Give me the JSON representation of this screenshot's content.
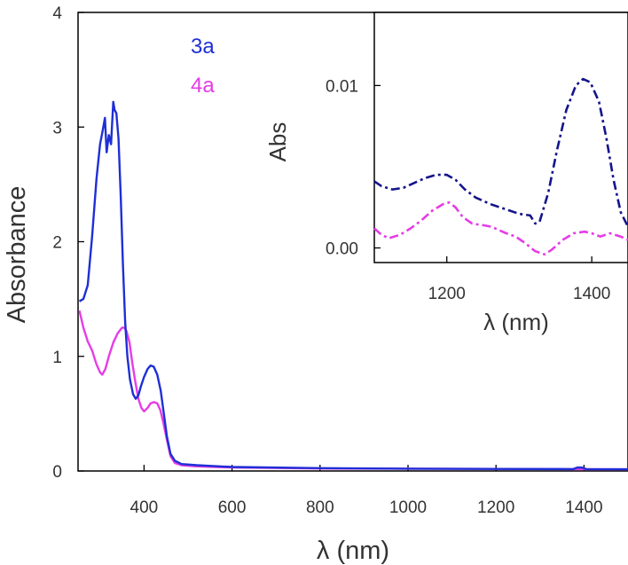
{
  "colors": {
    "series_3a": "#1f2fd6",
    "series_4a": "#e63ce6",
    "inset_3a": "#14148c",
    "inset_4a": "#e63ce6",
    "axis": "#000000",
    "text": "#333333"
  },
  "chart_data": [
    {
      "id": "main",
      "type": "line",
      "title": "",
      "xlabel": "λ (nm)",
      "ylabel": "Absorbance",
      "xlim": [
        250,
        1500
      ],
      "ylim": [
        0,
        4
      ],
      "xticks": [
        400,
        600,
        800,
        1000,
        1200,
        1400
      ],
      "yticks": [
        0,
        1,
        2,
        3,
        4
      ],
      "legend": {
        "placement": "top-center",
        "labels": [
          "3a",
          "4a"
        ]
      },
      "series": [
        {
          "name": "3a",
          "line_style": "solid",
          "points": [
            [
              253,
              1.48
            ],
            [
              262,
              1.5
            ],
            [
              272,
              1.62
            ],
            [
              282,
              2.05
            ],
            [
              292,
              2.55
            ],
            [
              300,
              2.85
            ],
            [
              305,
              2.95
            ],
            [
              311,
              3.08
            ],
            [
              315,
              2.78
            ],
            [
              320,
              2.93
            ],
            [
              325,
              2.85
            ],
            [
              330,
              3.22
            ],
            [
              333,
              3.15
            ],
            [
              337,
              3.12
            ],
            [
              342,
              2.9
            ],
            [
              347,
              2.4
            ],
            [
              352,
              1.8
            ],
            [
              357,
              1.3
            ],
            [
              362,
              1.0
            ],
            [
              368,
              0.8
            ],
            [
              375,
              0.67
            ],
            [
              381,
              0.63
            ],
            [
              387,
              0.66
            ],
            [
              393,
              0.74
            ],
            [
              400,
              0.82
            ],
            [
              408,
              0.89
            ],
            [
              415,
              0.92
            ],
            [
              422,
              0.91
            ],
            [
              430,
              0.84
            ],
            [
              438,
              0.7
            ],
            [
              445,
              0.5
            ],
            [
              452,
              0.3
            ],
            [
              460,
              0.15
            ],
            [
              470,
              0.09
            ],
            [
              485,
              0.06
            ],
            [
              520,
              0.05
            ],
            [
              600,
              0.035
            ],
            [
              800,
              0.025
            ],
            [
              1000,
              0.02
            ],
            [
              1200,
              0.018
            ],
            [
              1375,
              0.016
            ],
            [
              1385,
              0.03
            ],
            [
              1395,
              0.03
            ],
            [
              1405,
              0.016
            ],
            [
              1500,
              0.015
            ]
          ]
        },
        {
          "name": "4a",
          "line_style": "solid",
          "points": [
            [
              253,
              1.4
            ],
            [
              262,
              1.25
            ],
            [
              272,
              1.13
            ],
            [
              282,
              1.05
            ],
            [
              292,
              0.93
            ],
            [
              300,
              0.86
            ],
            [
              305,
              0.84
            ],
            [
              312,
              0.89
            ],
            [
              320,
              1.0
            ],
            [
              330,
              1.12
            ],
            [
              340,
              1.2
            ],
            [
              350,
              1.25
            ],
            [
              355,
              1.25
            ],
            [
              360,
              1.22
            ],
            [
              367,
              1.12
            ],
            [
              373,
              0.95
            ],
            [
              380,
              0.78
            ],
            [
              387,
              0.63
            ],
            [
              394,
              0.55
            ],
            [
              400,
              0.52
            ],
            [
              408,
              0.55
            ],
            [
              415,
              0.59
            ],
            [
              422,
              0.6
            ],
            [
              430,
              0.59
            ],
            [
              437,
              0.53
            ],
            [
              444,
              0.42
            ],
            [
              452,
              0.27
            ],
            [
              460,
              0.13
            ],
            [
              470,
              0.07
            ],
            [
              485,
              0.05
            ],
            [
              520,
              0.04
            ],
            [
              600,
              0.03
            ],
            [
              800,
              0.022
            ],
            [
              1000,
              0.02
            ],
            [
              1200,
              0.018
            ],
            [
              1500,
              0.015
            ]
          ]
        }
      ]
    },
    {
      "id": "inset",
      "type": "line",
      "title": "",
      "xlabel": "λ (nm)",
      "ylabel": "Abs",
      "xlim": [
        1100,
        1450
      ],
      "ylim": [
        -0.0009,
        0.0145
      ],
      "xticks": [
        1200,
        1400
      ],
      "yticks": [
        0.0,
        0.01
      ],
      "ytick_labels": [
        "0.00",
        "0.01"
      ],
      "series": [
        {
          "name": "3a",
          "line_style": "dash-dot",
          "points": [
            [
              1100,
              0.0041
            ],
            [
              1110,
              0.0038
            ],
            [
              1125,
              0.0036
            ],
            [
              1140,
              0.0037
            ],
            [
              1155,
              0.004
            ],
            [
              1170,
              0.0043
            ],
            [
              1185,
              0.0045
            ],
            [
              1200,
              0.0045
            ],
            [
              1212,
              0.0042
            ],
            [
              1225,
              0.0036
            ],
            [
              1240,
              0.0031
            ],
            [
              1260,
              0.0027
            ],
            [
              1280,
              0.0024
            ],
            [
              1300,
              0.0021
            ],
            [
              1315,
              0.002
            ],
            [
              1322,
              0.0015
            ],
            [
              1328,
              0.0016
            ],
            [
              1340,
              0.0034
            ],
            [
              1352,
              0.006
            ],
            [
              1365,
              0.0085
            ],
            [
              1378,
              0.01
            ],
            [
              1388,
              0.0104
            ],
            [
              1398,
              0.0102
            ],
            [
              1410,
              0.009
            ],
            [
              1420,
              0.0068
            ],
            [
              1430,
              0.0042
            ],
            [
              1440,
              0.0022
            ],
            [
              1450,
              0.0013
            ]
          ]
        },
        {
          "name": "4a",
          "line_style": "dash-dot",
          "points": [
            [
              1100,
              0.0012
            ],
            [
              1110,
              0.0008
            ],
            [
              1120,
              0.0006
            ],
            [
              1135,
              0.0008
            ],
            [
              1150,
              0.0012
            ],
            [
              1165,
              0.0017
            ],
            [
              1180,
              0.0023
            ],
            [
              1195,
              0.0027
            ],
            [
              1203,
              0.0028
            ],
            [
              1212,
              0.0025
            ],
            [
              1222,
              0.0019
            ],
            [
              1235,
              0.0015
            ],
            [
              1250,
              0.0014
            ],
            [
              1262,
              0.0013
            ],
            [
              1272,
              0.0011
            ],
            [
              1282,
              0.0009
            ],
            [
              1295,
              0.0007
            ],
            [
              1308,
              0.0003
            ],
            [
              1322,
              -0.0002
            ],
            [
              1335,
              -0.0004
            ],
            [
              1345,
              -0.0001
            ],
            [
              1360,
              0.0005
            ],
            [
              1375,
              0.0009
            ],
            [
              1390,
              0.001
            ],
            [
              1400,
              0.0009
            ],
            [
              1412,
              0.0007
            ],
            [
              1425,
              0.0009
            ],
            [
              1440,
              0.0007
            ],
            [
              1450,
              0.0005
            ]
          ]
        }
      ]
    }
  ]
}
